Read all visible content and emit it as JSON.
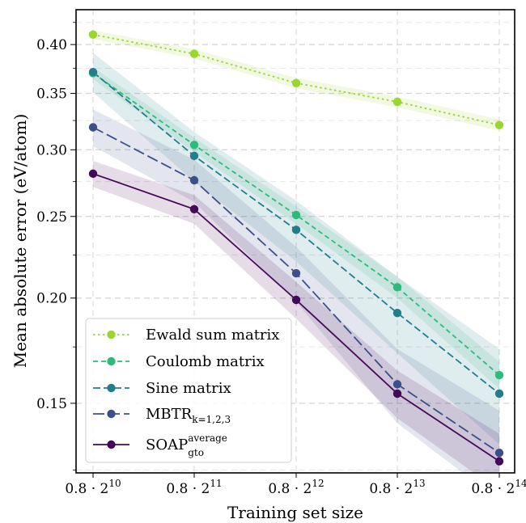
{
  "chart_data": {
    "type": "line",
    "xlabel": "Training set size",
    "ylabel": "Mean absolute error (eV/atom)",
    "x": [
      1,
      2,
      3,
      4,
      5
    ],
    "x_ticks": [
      {
        "base": "0.8 · 2",
        "exp": "10"
      },
      {
        "base": "0.8 · 2",
        "exp": "11"
      },
      {
        "base": "0.8 · 2",
        "exp": "12"
      },
      {
        "base": "0.8 · 2",
        "exp": "13"
      },
      {
        "base": "0.8 · 2",
        "exp": "14"
      }
    ],
    "y_scale": "log",
    "ylim": [
      0.124,
      0.44
    ],
    "y_ticks": [
      0.15,
      0.2,
      0.25,
      0.3,
      0.35,
      0.4
    ],
    "y_tick_labels": [
      "0.15",
      "0.20",
      "0.25",
      "0.30",
      "0.35",
      "0.40"
    ],
    "y_minor_ticks": [
      0.125,
      0.175,
      0.225,
      0.275,
      0.325,
      0.375,
      0.425
    ],
    "grid": true,
    "legend_position": "bottom-left",
    "series": [
      {
        "name": "Ewald sum matrix",
        "color": "#9bd52f",
        "dash": "dotted",
        "values": [
          0.411,
          0.39,
          0.36,
          0.342,
          0.321
        ],
        "band": 0.005
      },
      {
        "name": "Coulomb matrix",
        "color": "#2fba7d",
        "dash": "dashed",
        "values": [
          0.37,
          0.304,
          0.251,
          0.206,
          0.162
        ],
        "band": 0.006
      },
      {
        "name": "Sine matrix",
        "color": "#227d8c",
        "dash": "dashdot",
        "values": [
          0.371,
          0.295,
          0.241,
          0.192,
          0.154
        ],
        "band": 0.02
      },
      {
        "name": "MBTR",
        "name_sub": "k=1,2,3",
        "color": "#3b4f8a",
        "dash": "longdash",
        "values": [
          0.319,
          0.276,
          0.214,
          0.158,
          0.131
        ],
        "band": 0.016
      },
      {
        "name": "SOAP",
        "name_sub": "gto",
        "name_sup": "average",
        "color": "#450a57",
        "dash": "solid",
        "values": [
          0.281,
          0.255,
          0.199,
          0.154,
          0.128
        ],
        "band": 0.01
      }
    ]
  }
}
